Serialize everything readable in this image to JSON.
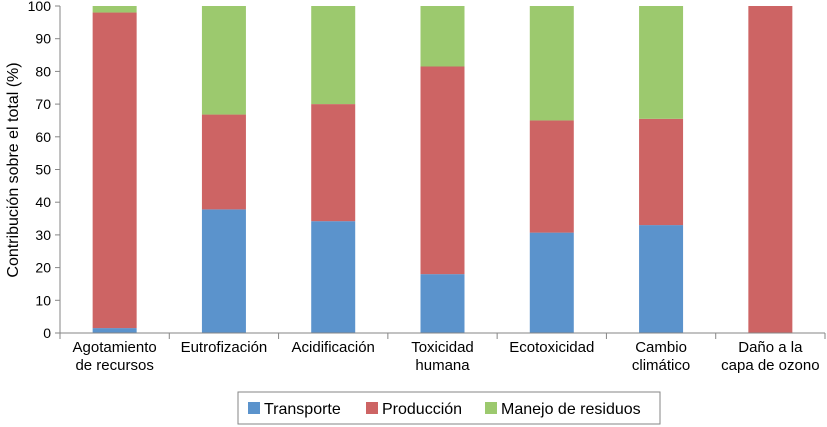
{
  "chart_data": {
    "type": "bar",
    "stacked": true,
    "title": "",
    "xlabel": "",
    "ylabel": "Contribución sobre el total (%)",
    "ylim": [
      0,
      100
    ],
    "yticks": [
      0,
      10,
      20,
      30,
      40,
      50,
      60,
      70,
      80,
      90,
      100
    ],
    "grid": false,
    "legend_position": "bottom",
    "categories": [
      [
        "Agotamiento",
        "de recursos"
      ],
      [
        "Eutrofización"
      ],
      [
        "Acidificación"
      ],
      [
        "Toxicidad",
        "humana"
      ],
      [
        "Ecotoxicidad"
      ],
      [
        "Cambio",
        "climático"
      ],
      [
        "Daño a la",
        "capa de ozono"
      ]
    ],
    "series": [
      {
        "name": "Transporte",
        "color": "#5b93cc",
        "values": [
          1.5,
          37.8,
          34.2,
          18.0,
          30.7,
          33.0,
          0
        ]
      },
      {
        "name": "Producción",
        "color": "#cd6464",
        "values": [
          96.5,
          29.0,
          35.8,
          63.5,
          34.3,
          32.5,
          100
        ]
      },
      {
        "name": "Manejo de residuos",
        "color": "#9cc96e",
        "values": [
          2.0,
          33.2,
          30.0,
          18.5,
          35.0,
          34.5,
          0
        ]
      }
    ]
  }
}
